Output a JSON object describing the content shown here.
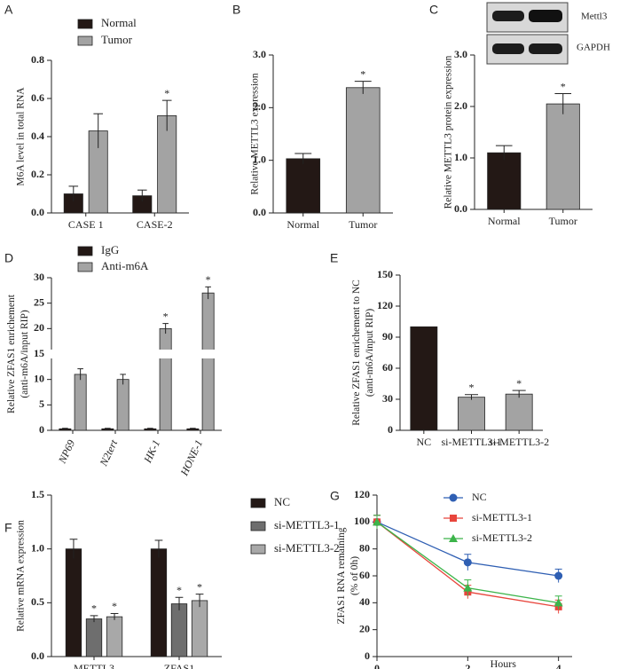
{
  "chart_data": [
    {
      "type": "bar",
      "panel": "A",
      "ylabel": [
        "M6A level in total RNA"
      ],
      "categories": [
        "CASE 1",
        "CASE-2"
      ],
      "series": [
        {
          "name": "Normal",
          "color": "#231815",
          "values": [
            0.1,
            0.09
          ],
          "errors": [
            0.04,
            0.03
          ],
          "significance": [
            null,
            null
          ]
        },
        {
          "name": "Tumor",
          "color": "#a3a3a3",
          "values": [
            0.43,
            0.51
          ],
          "errors": [
            0.09,
            0.08
          ],
          "significance": [
            null,
            "*"
          ]
        }
      ],
      "ylim": [
        0,
        0.8
      ],
      "yticks": [
        {
          "value": 0,
          "label": "0.0"
        },
        {
          "value": 0.2,
          "label": "0.2"
        },
        {
          "value": 0.4,
          "label": "0.4"
        },
        {
          "value": 0.6,
          "label": "0.6"
        },
        {
          "value": 0.8,
          "label": "0.8"
        }
      ]
    },
    {
      "type": "bar",
      "panel": "B",
      "ylabel": [
        "Relative METTL3 expression"
      ],
      "categories": [
        "Normal",
        "Tumor"
      ],
      "values": [
        1.03,
        2.38
      ],
      "errors": [
        0.1,
        0.12
      ],
      "colors": [
        "#231815",
        "#a3a3a3"
      ],
      "significance": [
        null,
        "*"
      ],
      "ylim": [
        0,
        3
      ],
      "yticks": [
        {
          "value": 0,
          "label": "0.0"
        },
        {
          "value": 1,
          "label": "1.0"
        },
        {
          "value": 2,
          "label": "2.0"
        },
        {
          "value": 3,
          "label": "3.0"
        }
      ]
    },
    {
      "type": "bar",
      "panel": "C",
      "ylabel": [
        "Relative METTL3 protein expression"
      ],
      "categories": [
        "Normal",
        "Tumor"
      ],
      "values": [
        1.1,
        2.05
      ],
      "errors": [
        0.14,
        0.2
      ],
      "colors": [
        "#231815",
        "#a3a3a3"
      ],
      "significance": [
        null,
        "*"
      ],
      "blot_labels": [
        "Mettl3",
        "GAPDH"
      ],
      "ylim": [
        0,
        3
      ],
      "yticks": [
        {
          "value": 0,
          "label": "0.0"
        },
        {
          "value": 1,
          "label": "1.0"
        },
        {
          "value": 2,
          "label": "2.0"
        },
        {
          "value": 3,
          "label": "3.0"
        }
      ]
    },
    {
      "type": "bar",
      "panel": "D",
      "ylabel": [
        "Relative ZFAS1 enrichement",
        "(anti-m6A/input RIP)"
      ],
      "categories": [
        "NP69",
        "N2tert",
        "HK-1",
        "HONE-1"
      ],
      "series": [
        {
          "name": "IgG",
          "color": "#231815",
          "values": [
            0.3,
            0.3,
            0.3,
            0.3
          ],
          "errors": [
            0.1,
            0.1,
            0.1,
            0.1
          ],
          "significance": [
            null,
            null,
            null,
            null
          ]
        },
        {
          "name": "Anti-m6A",
          "color": "#a3a3a3",
          "values": [
            11,
            10,
            20,
            27
          ],
          "errors": [
            1.1,
            1.0,
            1.0,
            1.2
          ],
          "significance": [
            null,
            null,
            "*",
            "*"
          ]
        }
      ],
      "axis_break": 15,
      "ylim": [
        0,
        30
      ],
      "yticks": [
        0,
        5,
        10,
        15,
        20,
        25,
        30
      ]
    },
    {
      "type": "bar",
      "panel": "E",
      "ylabel": [
        "Relative ZFAS1 enrichement to NC",
        "(anti-m6A/input RIP)"
      ],
      "categories": [
        "NC",
        "si-METTL3-1",
        "si-METTL3-2"
      ],
      "values": [
        100,
        32,
        35
      ],
      "errors": [
        0,
        2.5,
        3.5
      ],
      "colors": [
        "#231815",
        "#a3a3a3",
        "#a3a3a3"
      ],
      "significance": [
        null,
        "*",
        "*"
      ],
      "ylim": [
        0,
        150
      ],
      "yticks": [
        0,
        30,
        60,
        90,
        120,
        150
      ]
    },
    {
      "type": "bar",
      "panel": "F",
      "ylabel": [
        "Relative mRNA expression"
      ],
      "categories": [
        "METTL3",
        "ZFAS1"
      ],
      "series": [
        {
          "name": "NC",
          "color": "#231815",
          "values": [
            1.0,
            1.0
          ],
          "errors": [
            0.09,
            0.08
          ],
          "significance": [
            null,
            null
          ]
        },
        {
          "name": "si-METTL3-1",
          "color": "#6e6e6e",
          "values": [
            0.35,
            0.49
          ],
          "errors": [
            0.03,
            0.06
          ],
          "significance": [
            "*",
            "*"
          ]
        },
        {
          "name": "si-METTL3-2",
          "color": "#a8a8a8",
          "values": [
            0.37,
            0.52
          ],
          "errors": [
            0.03,
            0.06
          ],
          "significance": [
            "*",
            "*"
          ]
        }
      ],
      "ylim": [
        0,
        1.5
      ],
      "yticks": [
        {
          "value": 0,
          "label": "0.0"
        },
        {
          "value": 0.5,
          "label": "0.5"
        },
        {
          "value": 1,
          "label": "1.0"
        },
        {
          "value": 1.5,
          "label": "1.5"
        }
      ]
    },
    {
      "type": "line",
      "panel": "G",
      "ylabel": [
        "ZFAS1 RNA remaining",
        "(% of 0h)"
      ],
      "xlabel": "Hours",
      "x": [
        0,
        2,
        4
      ],
      "series": [
        {
          "name": "NC",
          "color": "#2f5fb3",
          "marker": "circle",
          "values": [
            100,
            70,
            60
          ],
          "errors": [
            5,
            6,
            5
          ]
        },
        {
          "name": "si-METTL3-1",
          "color": "#e8453c",
          "marker": "square",
          "values": [
            100,
            48,
            37
          ],
          "errors": [
            5,
            5,
            5
          ]
        },
        {
          "name": "si-METTL3-2",
          "color": "#3cb44a",
          "marker": "triangle",
          "values": [
            100,
            51,
            40
          ],
          "errors": [
            5,
            6,
            5
          ]
        }
      ],
      "xlim": [
        0,
        4.3
      ],
      "xticks": [
        0,
        2,
        4
      ],
      "ylim": [
        0,
        120
      ],
      "yticks": [
        0,
        20,
        40,
        60,
        80,
        100,
        120
      ]
    }
  ]
}
